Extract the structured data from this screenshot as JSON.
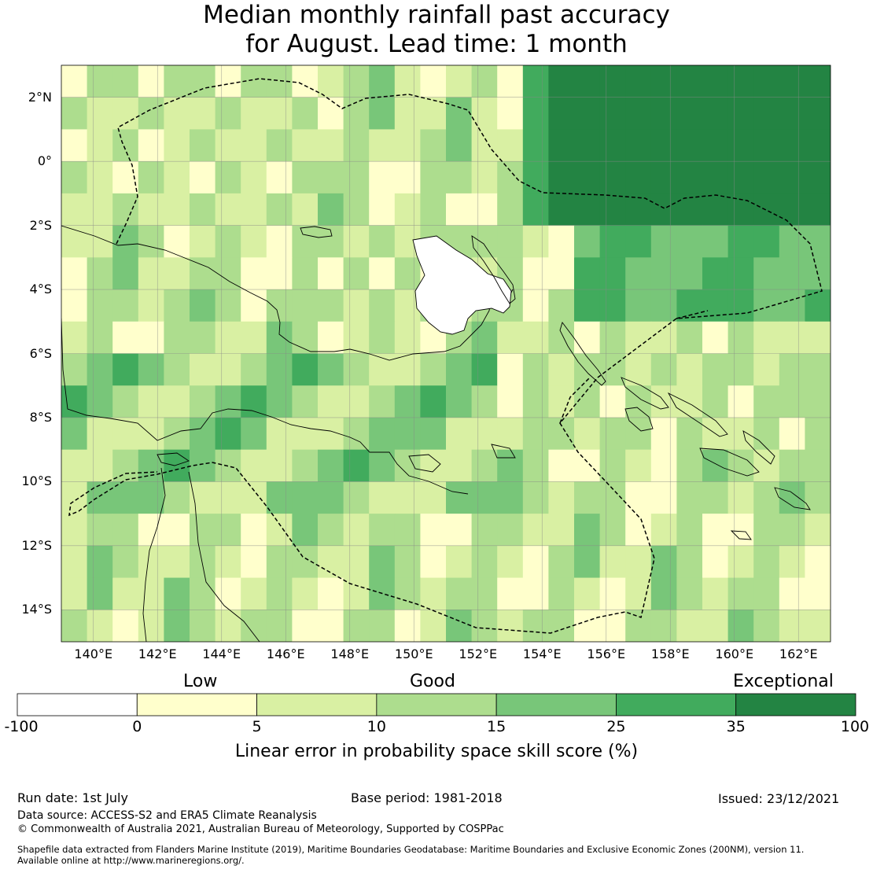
{
  "title_line1": "Median monthly rainfall past accuracy",
  "title_line2": "for August. Lead time: 1 month",
  "map": {
    "lon_range": [
      139,
      163
    ],
    "lat_range": [
      -15,
      3
    ],
    "lat_ticks": [
      {
        "value": 2,
        "label": "2°N"
      },
      {
        "value": 0,
        "label": "0°"
      },
      {
        "value": -2,
        "label": "2°S"
      },
      {
        "value": -4,
        "label": "4°S"
      },
      {
        "value": -6,
        "label": "6°S"
      },
      {
        "value": -8,
        "label": "8°S"
      },
      {
        "value": -10,
        "label": "10°S"
      },
      {
        "value": -12,
        "label": "12°S"
      },
      {
        "value": -14,
        "label": "14°S"
      }
    ],
    "lon_ticks": [
      {
        "value": 140,
        "label": "140°E"
      },
      {
        "value": 142,
        "label": "142°E"
      },
      {
        "value": 144,
        "label": "144°E"
      },
      {
        "value": 146,
        "label": "146°E"
      },
      {
        "value": 148,
        "label": "148°E"
      },
      {
        "value": 150,
        "label": "150°E"
      },
      {
        "value": 152,
        "label": "152°E"
      },
      {
        "value": 154,
        "label": "154°E"
      },
      {
        "value": 156,
        "label": "156°E"
      },
      {
        "value": 158,
        "label": "158°E"
      },
      {
        "value": 160,
        "label": "160°E"
      },
      {
        "value": 162,
        "label": "162°E"
      }
    ]
  },
  "colorbar": {
    "category_labels": [
      "Low",
      "Good",
      "Exceptional"
    ],
    "bounds": [
      "-100",
      "0",
      "5",
      "10",
      "15",
      "25",
      "35",
      "100"
    ],
    "colors": [
      "#ffffff",
      "#ffffcc",
      "#d9f0a3",
      "#addd8e",
      "#78c679",
      "#41ab5d",
      "#238443"
    ],
    "title": "Linear error in probability space skill score (%)"
  },
  "footer": {
    "run_date": "Run date: 1st July",
    "base_period": "Base period: 1981-2018",
    "issued": "Issued: 23/12/2021",
    "data_source": "Data source: ACCESS-S2 and ERA5 Climate Reanalysis",
    "copyright": "© Commonwealth of Australia 2021, Australian Bureau of Meteorology, Supported by COSPPac",
    "shapefile_line1": "Shapefile data extracted from Flanders Marine Institute (2019), Maritime Boundaries Geodatabase: Maritime Boundaries and Exclusive Economic Zones (200NM), version 11.",
    "shapefile_line2": "Available online at http://www.marineregions.org/."
  }
}
